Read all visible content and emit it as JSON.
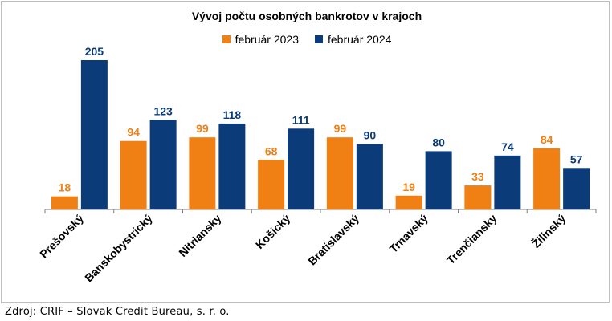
{
  "chart_data": {
    "type": "bar",
    "title": "Vývoj počtu osobných bankrotov v krajoch",
    "categories": [
      "Prešovský",
      "Banskobystrický",
      "Nitriansky",
      "Košický",
      "Bratislavský",
      "Trnavský",
      "Trenčiansky",
      "Žilinský"
    ],
    "series": [
      {
        "name": "február 2023",
        "color": "#f07f14",
        "values": [
          18,
          94,
          99,
          68,
          99,
          19,
          33,
          84
        ]
      },
      {
        "name": "február 2024",
        "color": "#0c3b7a",
        "values": [
          205,
          123,
          118,
          111,
          90,
          80,
          74,
          57
        ]
      }
    ],
    "ylim": [
      0,
      220
    ],
    "grid": false,
    "legend_position": "top",
    "xlabel": "",
    "ylabel": ""
  },
  "source": "Zdroj: CRIF – Slovak Credit Bureau, s. r. o."
}
